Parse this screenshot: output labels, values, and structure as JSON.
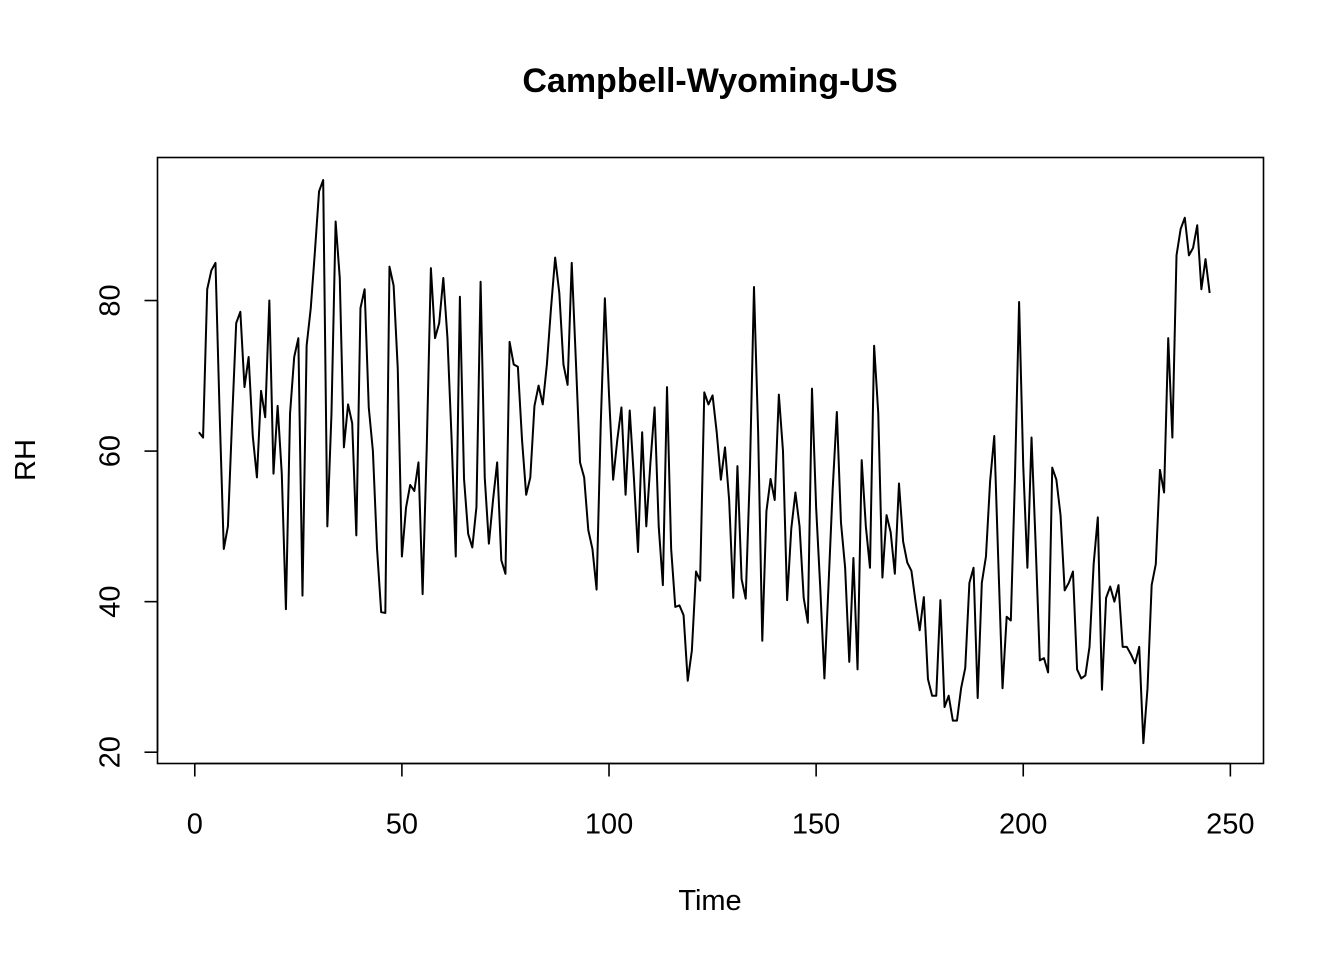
{
  "chart_data": {
    "type": "line",
    "title": "Campbell-Wyoming-US",
    "xlabel": "Time",
    "ylabel": "RH",
    "xlim": [
      -9,
      258
    ],
    "ylim": [
      18.5,
      99
    ],
    "x_ticks": [
      0,
      50,
      100,
      150,
      200,
      250
    ],
    "y_ticks": [
      20,
      40,
      60,
      80
    ],
    "grid": false,
    "legend": "none",
    "line_color": "#000000",
    "x_start": 1,
    "series": [
      {
        "values": [
          62.5,
          61.8,
          81.5,
          84,
          85,
          65,
          47,
          50,
          64,
          77,
          78.5,
          68.5,
          72.5,
          62,
          56.5,
          68,
          64.5,
          80,
          57,
          66,
          57,
          39,
          65,
          72.5,
          75,
          40.8,
          74,
          79,
          86.5,
          94.5,
          96,
          50,
          65,
          90.5,
          83,
          60.5,
          66.2,
          63.7,
          48.8,
          79,
          81.5,
          65.8,
          60,
          47,
          38.6,
          38.5,
          84.5,
          82,
          71,
          46,
          52.5,
          55.5,
          54.7,
          58.5,
          41,
          60.5,
          84.3,
          75,
          77,
          83,
          75,
          61.6,
          46,
          80.5,
          56.3,
          49,
          47.2,
          52.6,
          82.5,
          56.5,
          47.7,
          53.5,
          58.5,
          45.5,
          43.7,
          74.5,
          71.5,
          71.2,
          61.5,
          54.2,
          56.5,
          66,
          68.7,
          66.2,
          71.5,
          79,
          85.7,
          81,
          71.5,
          68.8,
          85,
          72,
          58.5,
          56.5,
          49.5,
          47,
          41.6,
          63.5,
          80.3,
          67.5,
          56.2,
          61.5,
          65.8,
          54.2,
          65.4,
          56.5,
          46.6,
          62.5,
          50,
          58.5,
          65.8,
          50,
          42.2,
          68.5,
          47,
          39.3,
          39.5,
          38.2,
          29.5,
          33.5,
          44,
          42.8,
          67.8,
          66.2,
          67.4,
          62.5,
          56.2,
          60.5,
          53.5,
          40.5,
          58,
          43,
          40.4,
          57,
          81.8,
          62.5,
          34.8,
          52,
          56.3,
          53.5,
          67.5,
          60,
          40.2,
          49.7,
          54.5,
          50,
          40.5,
          37.2,
          68.3,
          52.5,
          41.8,
          29.8,
          42.3,
          55,
          65.2,
          50.5,
          44.5,
          32,
          45.8,
          31,
          58.8,
          50,
          44.5,
          74,
          65,
          43.2,
          51.5,
          49.2,
          43.7,
          55.7,
          48,
          45.2,
          44.1,
          40,
          36.2,
          40.6,
          29.7,
          27.5,
          27.5,
          40.2,
          26,
          27.5,
          24.2,
          24.2,
          28.5,
          31.2,
          42.5,
          44.5,
          27.2,
          42.5,
          46,
          56,
          62,
          45,
          28.5,
          38,
          37.5,
          56.5,
          79.8,
          58,
          44.5,
          61.8,
          47.5,
          32.2,
          32.5,
          30.6,
          57.8,
          56.2,
          51.5,
          41.5,
          42.5,
          44,
          31,
          29.8,
          30.2,
          34,
          45,
          51.2,
          28.3,
          40.5,
          42,
          40,
          42.2,
          34,
          34,
          33,
          31.8,
          34,
          21.2,
          28.5,
          42.2,
          45,
          57.5,
          54.5,
          75,
          61.8,
          86,
          89.5,
          91,
          86,
          87,
          90,
          81.5,
          85.5,
          81
        ]
      }
    ]
  }
}
